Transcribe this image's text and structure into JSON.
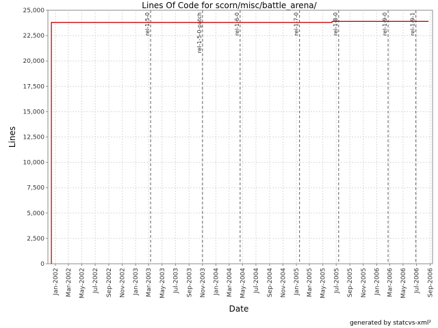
{
  "chart_data": {
    "type": "line",
    "title": "Lines Of Code for scorn/misc/battle_arena/",
    "xlabel": "Date",
    "ylabel": "Lines",
    "credit": "generated by statcvs-xml²",
    "ylim": [
      0,
      25000
    ],
    "yticks": [
      0,
      2500,
      5000,
      7500,
      10000,
      12500,
      15000,
      17500,
      20000,
      22500,
      25000
    ],
    "ytick_labels": [
      "0",
      "2,500",
      "5,000",
      "7,500",
      "10,000",
      "12,500",
      "15,000",
      "17,500",
      "20,000",
      "22,500",
      "25,000"
    ],
    "xlim": [
      "2001-11-28",
      "2006-09-12"
    ],
    "xticks": [
      "2002-01-01",
      "2002-03-01",
      "2002-05-01",
      "2002-07-01",
      "2002-09-01",
      "2002-11-01",
      "2003-01-01",
      "2003-03-01",
      "2003-05-01",
      "2003-07-01",
      "2003-09-01",
      "2003-11-01",
      "2004-01-01",
      "2004-03-01",
      "2004-05-01",
      "2004-07-01",
      "2004-09-01",
      "2004-11-01",
      "2005-01-01",
      "2005-03-01",
      "2005-05-01",
      "2005-07-01",
      "2005-09-01",
      "2005-11-01",
      "2006-01-01",
      "2006-03-01",
      "2006-05-01",
      "2006-07-01",
      "2006-09-01"
    ],
    "xtick_labels": [
      "Jan-2002",
      "Mar-2002",
      "May-2002",
      "Jul-2002",
      "Sep-2002",
      "Nov-2002",
      "Jan-2003",
      "Mar-2003",
      "May-2003",
      "Jul-2003",
      "Sep-2003",
      "Nov-2003",
      "Jan-2004",
      "Mar-2004",
      "May-2004",
      "Jul-2004",
      "Sep-2004",
      "Nov-2004",
      "Jan-2005",
      "Mar-2005",
      "May-2005",
      "Jul-2005",
      "Sep-2005",
      "Nov-2005",
      "Jan-2006",
      "Mar-2006",
      "May-2006",
      "Jul-2006",
      "Sep-2006"
    ],
    "grid": true,
    "series": [
      {
        "color": "#cc0000",
        "points": [
          {
            "x": "2001-12-14",
            "y": 0
          },
          {
            "x": "2001-12-14",
            "y": 23800
          },
          {
            "x": "2005-06-12",
            "y": 23800
          },
          {
            "x": "2005-06-12",
            "y": 23900
          },
          {
            "x": "2006-08-25",
            "y": 23900
          }
        ]
      }
    ],
    "annotations": [
      {
        "label": "rel-1-5-0",
        "x": "2003-03-10"
      },
      {
        "label": "rel-1-5-0-patch",
        "x": "2003-11-01"
      },
      {
        "label": "rel-1-6-0",
        "x": "2004-04-20"
      },
      {
        "label": "rel-1-7-0",
        "x": "2005-01-15"
      },
      {
        "label": "rel-1-8-0",
        "x": "2005-07-12"
      },
      {
        "label": "rel-1-9-0",
        "x": "2006-02-22"
      },
      {
        "label": "rel-1-9-1",
        "x": "2006-06-28"
      }
    ]
  }
}
